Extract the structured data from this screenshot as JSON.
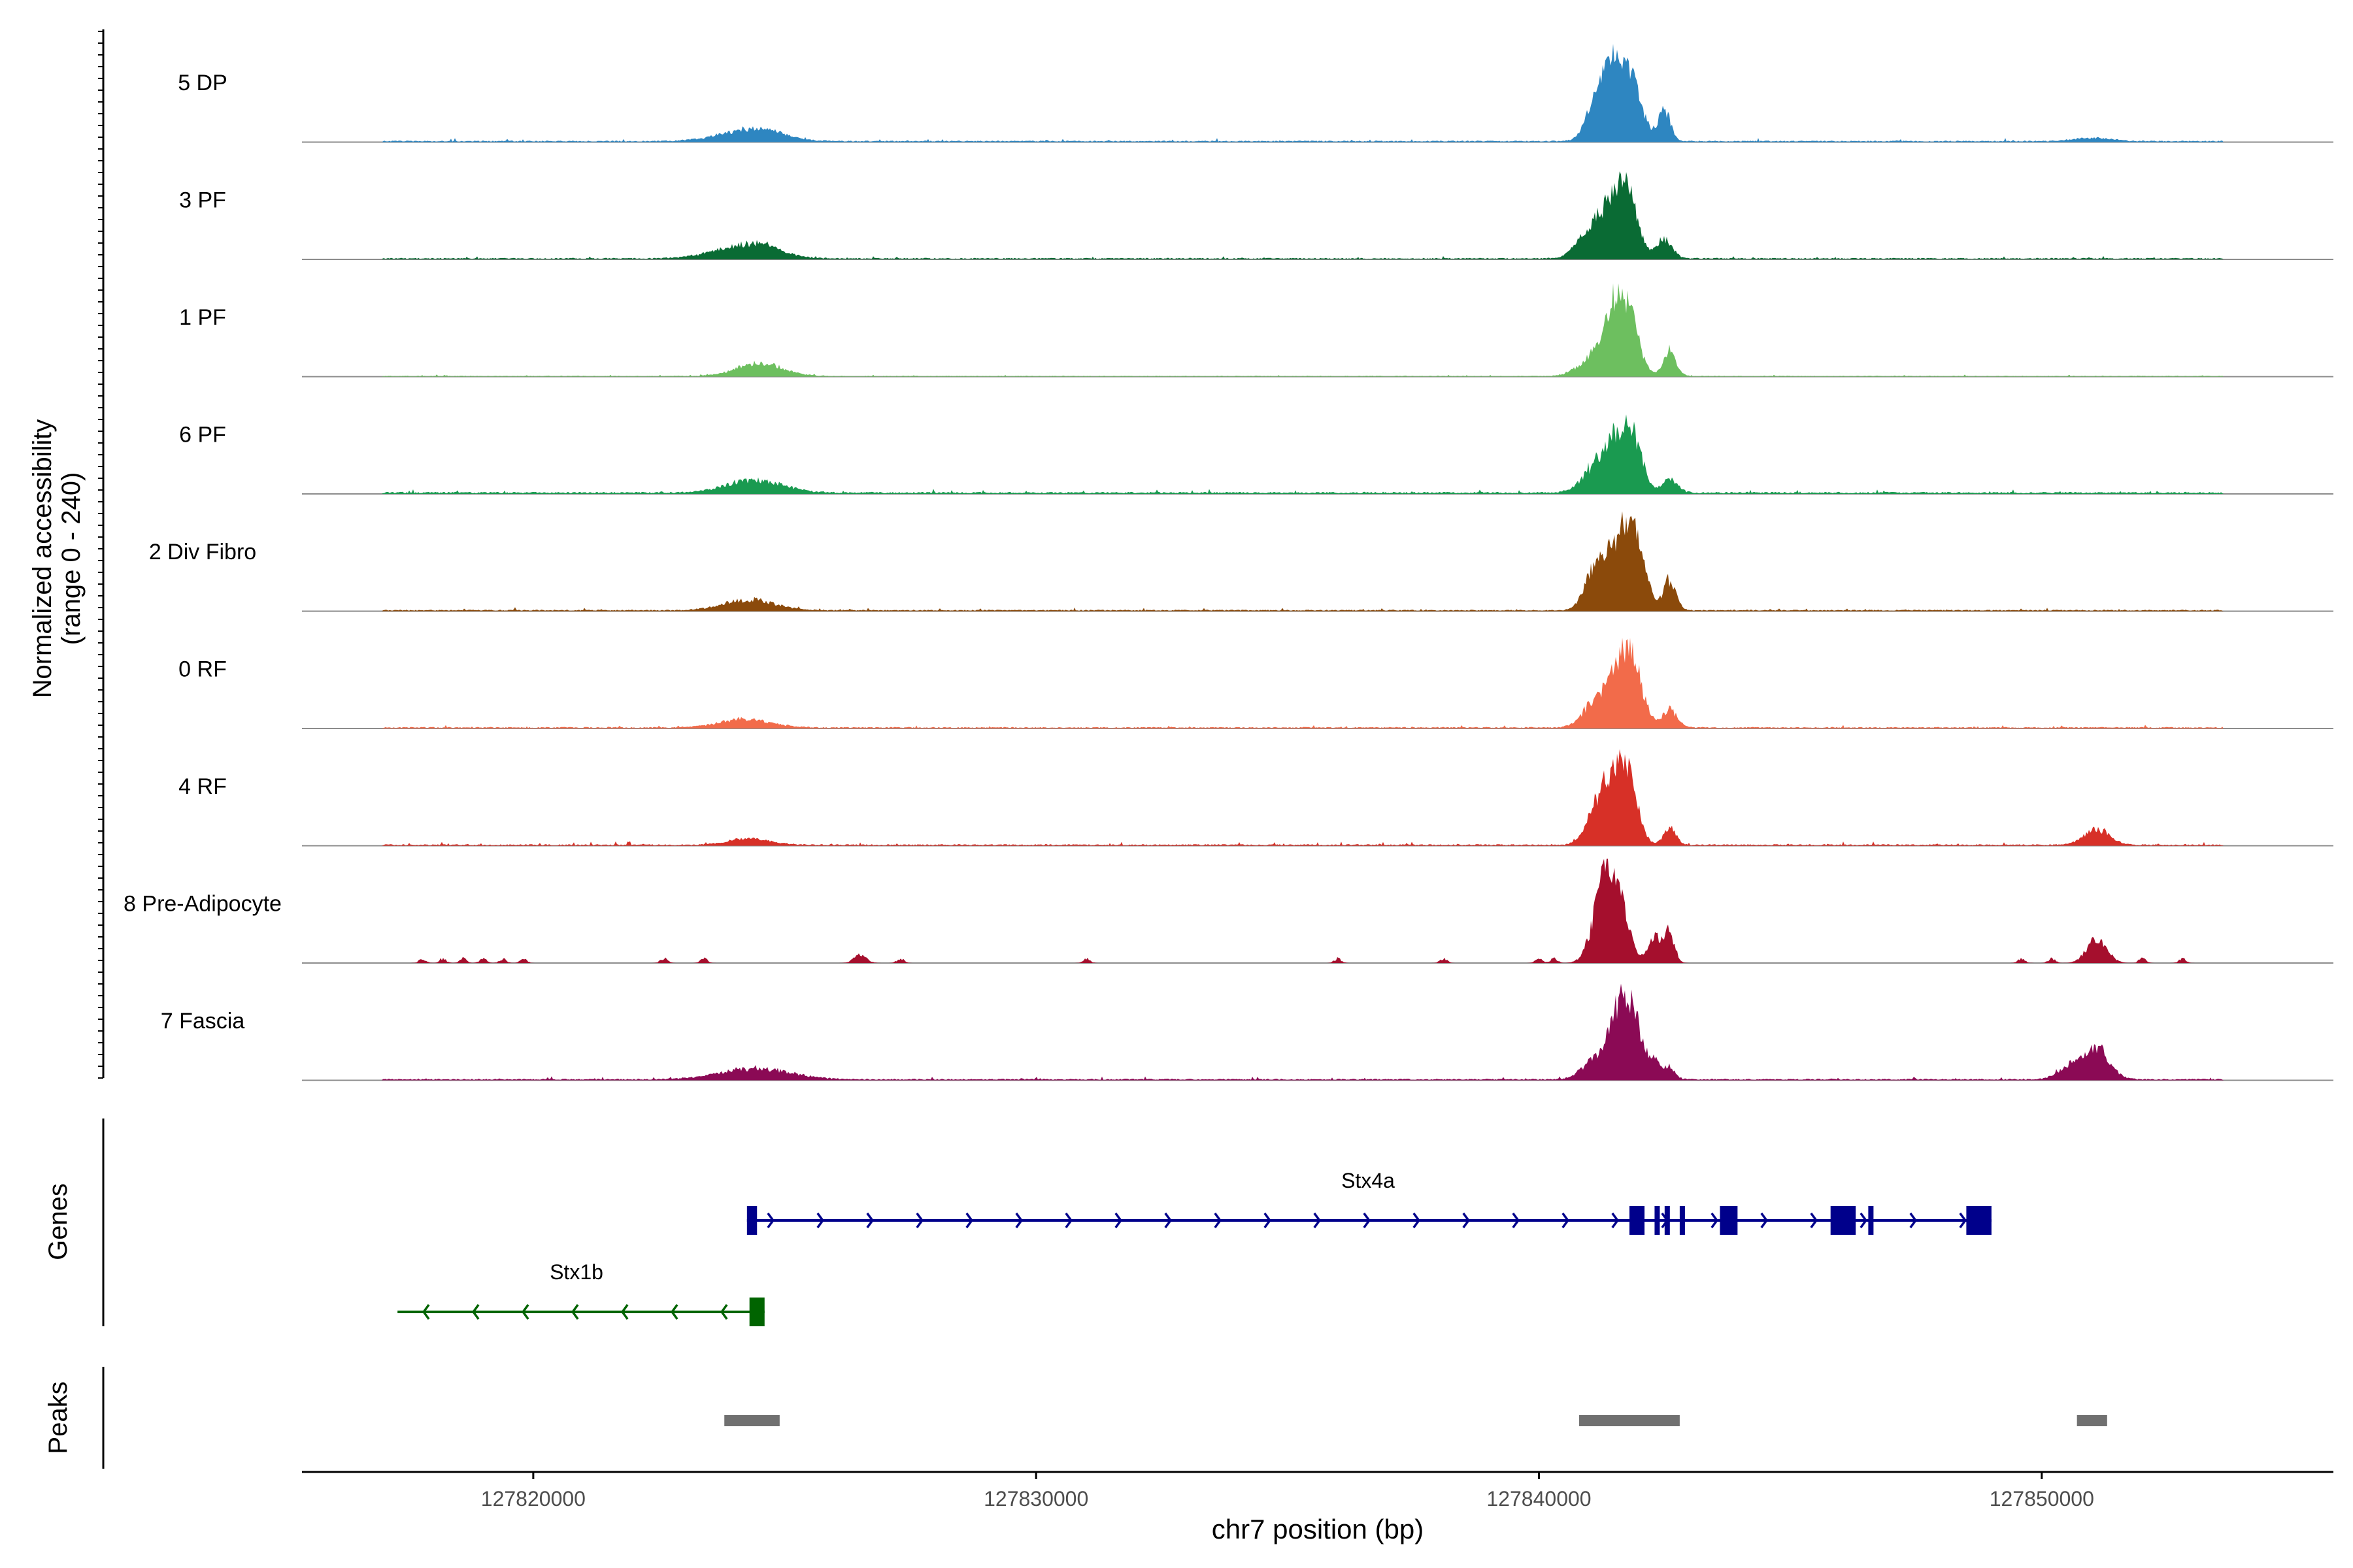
{
  "chart_data": {
    "type": "area",
    "title": "",
    "chromosome": "chr7",
    "xlabel": "chr7 position (bp)",
    "ylabel_line1": "Normalized accessibility",
    "ylabel_line2": "(range 0 - 240)",
    "ylim": [
      0,
      240
    ],
    "xlim": [
      127815400,
      127855800
    ],
    "x_ticks": [
      127820000,
      127830000,
      127840000,
      127850000
    ],
    "x_tick_labels": [
      "127820000",
      "127830000",
      "127840000",
      "127850000"
    ],
    "tracks": [
      {
        "label": "5 DP",
        "color": "#2e86c1",
        "baseline": 3,
        "noise": 1.5,
        "scale": 1.0,
        "peaks": [
          [
            127824300,
            600,
            25
          ],
          [
            127824700,
            250,
            8
          ],
          [
            127841300,
            180,
            90
          ],
          [
            127841600,
            200,
            130
          ],
          [
            127841900,
            200,
            100
          ],
          [
            127841100,
            200,
            60
          ],
          [
            127842500,
            120,
            70
          ],
          [
            127851000,
            350,
            8
          ]
        ]
      },
      {
        "label": "3 PF",
        "color": "#0a6b34",
        "baseline": 3,
        "noise": 1.5,
        "scale": 1.0,
        "peaks": [
          [
            127824200,
            600,
            30
          ],
          [
            127824600,
            250,
            10
          ],
          [
            127841000,
            250,
            60
          ],
          [
            127841500,
            250,
            120
          ],
          [
            127841800,
            200,
            100
          ],
          [
            127842500,
            150,
            45
          ]
        ]
      },
      {
        "label": "1 PF",
        "color": "#6dbf5f",
        "baseline": 2,
        "noise": 1.0,
        "scale": 1.0,
        "peaks": [
          [
            127824500,
            450,
            30
          ],
          [
            127841100,
            300,
            40
          ],
          [
            127841500,
            220,
            130
          ],
          [
            127841800,
            200,
            110
          ],
          [
            127842600,
            130,
            60
          ]
        ]
      },
      {
        "label": "6 PF",
        "color": "#1a9a50",
        "baseline": 4,
        "noise": 2.0,
        "scale": 1.0,
        "peaks": [
          [
            127824400,
            550,
            30
          ],
          [
            127841200,
            300,
            60
          ],
          [
            127841600,
            250,
            100
          ],
          [
            127841900,
            180,
            80
          ],
          [
            127842600,
            150,
            30
          ]
        ]
      },
      {
        "label": "2 Div Fibro",
        "color": "#8b4a0b",
        "baseline": 3,
        "noise": 1.5,
        "scale": 1.0,
        "peaks": [
          [
            127824300,
            500,
            25
          ],
          [
            127841100,
            200,
            80
          ],
          [
            127841600,
            280,
            140
          ],
          [
            127841900,
            220,
            110
          ],
          [
            127842600,
            120,
            70
          ]
        ]
      },
      {
        "label": "0 RF",
        "color": "#f26b4a",
        "baseline": 3,
        "noise": 1.5,
        "scale": 1.0,
        "peaks": [
          [
            127824200,
            500,
            20
          ],
          [
            127841100,
            250,
            50
          ],
          [
            127841600,
            250,
            130
          ],
          [
            127841900,
            200,
            90
          ],
          [
            127842600,
            150,
            40
          ]
        ]
      },
      {
        "label": "4 RF",
        "color": "#d73027",
        "baseline": 3,
        "noise": 1.8,
        "scale": 1.0,
        "peaks": [
          [
            127824300,
            400,
            15
          ],
          [
            127841100,
            200,
            60
          ],
          [
            127841500,
            250,
            140
          ],
          [
            127841800,
            180,
            110
          ],
          [
            127842600,
            120,
            40
          ],
          [
            127851100,
            250,
            35
          ]
        ]
      },
      {
        "label": "8 Pre-Adipocyte",
        "color": "#a50f2d",
        "baseline": 0,
        "noise": 0,
        "scale": 1.0,
        "peaks": [
          [
            127841300,
            220,
            170
          ],
          [
            127841600,
            200,
            110
          ],
          [
            127842300,
            130,
            60
          ],
          [
            127842600,
            100,
            70
          ],
          [
            127851100,
            200,
            55
          ],
          [
            127826500,
            120,
            20
          ]
        ],
        "speckles": [
          127817800,
          127818200,
          127818600,
          127819000,
          127819400,
          127819800,
          127822600,
          127823400,
          127827300,
          127831000,
          127836000,
          127838100,
          127840000,
          127840300,
          127849600,
          127850200,
          127852000,
          127852800
        ]
      },
      {
        "label": "7 Fascia",
        "color": "#8b0a55",
        "baseline": 3,
        "noise": 1.5,
        "scale": 1.0,
        "peaks": [
          [
            127824400,
            700,
            25
          ],
          [
            127841100,
            250,
            40
          ],
          [
            127841600,
            220,
            150
          ],
          [
            127841900,
            180,
            100
          ],
          [
            127842300,
            120,
            40
          ],
          [
            127842600,
            100,
            30
          ],
          [
            127850600,
            250,
            30
          ],
          [
            127851100,
            250,
            70
          ]
        ]
      }
    ],
    "genes": [
      {
        "name": "Stx4a",
        "strand": "+",
        "color": "#00008b",
        "start": 127824250,
        "end": 127849000,
        "exons": [
          [
            127824250,
            127824450
          ],
          [
            127841800,
            127842100
          ],
          [
            127842300,
            127842380
          ],
          [
            127842500,
            127842580
          ],
          [
            127842800,
            127842880
          ],
          [
            127843600,
            127843950
          ],
          [
            127845800,
            127846300
          ],
          [
            127846550,
            127846650
          ],
          [
            127848500,
            127849000
          ]
        ]
      },
      {
        "name": "Stx1b",
        "strand": "-",
        "color": "#006400",
        "start": 127817300,
        "end": 127824600,
        "exons": [
          [
            127824300,
            127824600
          ]
        ]
      }
    ],
    "peaks": [
      [
        127823800,
        127824900
      ],
      [
        127840800,
        127842800
      ],
      [
        127850700,
        127851300
      ]
    ],
    "genes_label": "Genes",
    "peaks_label": "Peaks",
    "peak_color": "#707070"
  }
}
